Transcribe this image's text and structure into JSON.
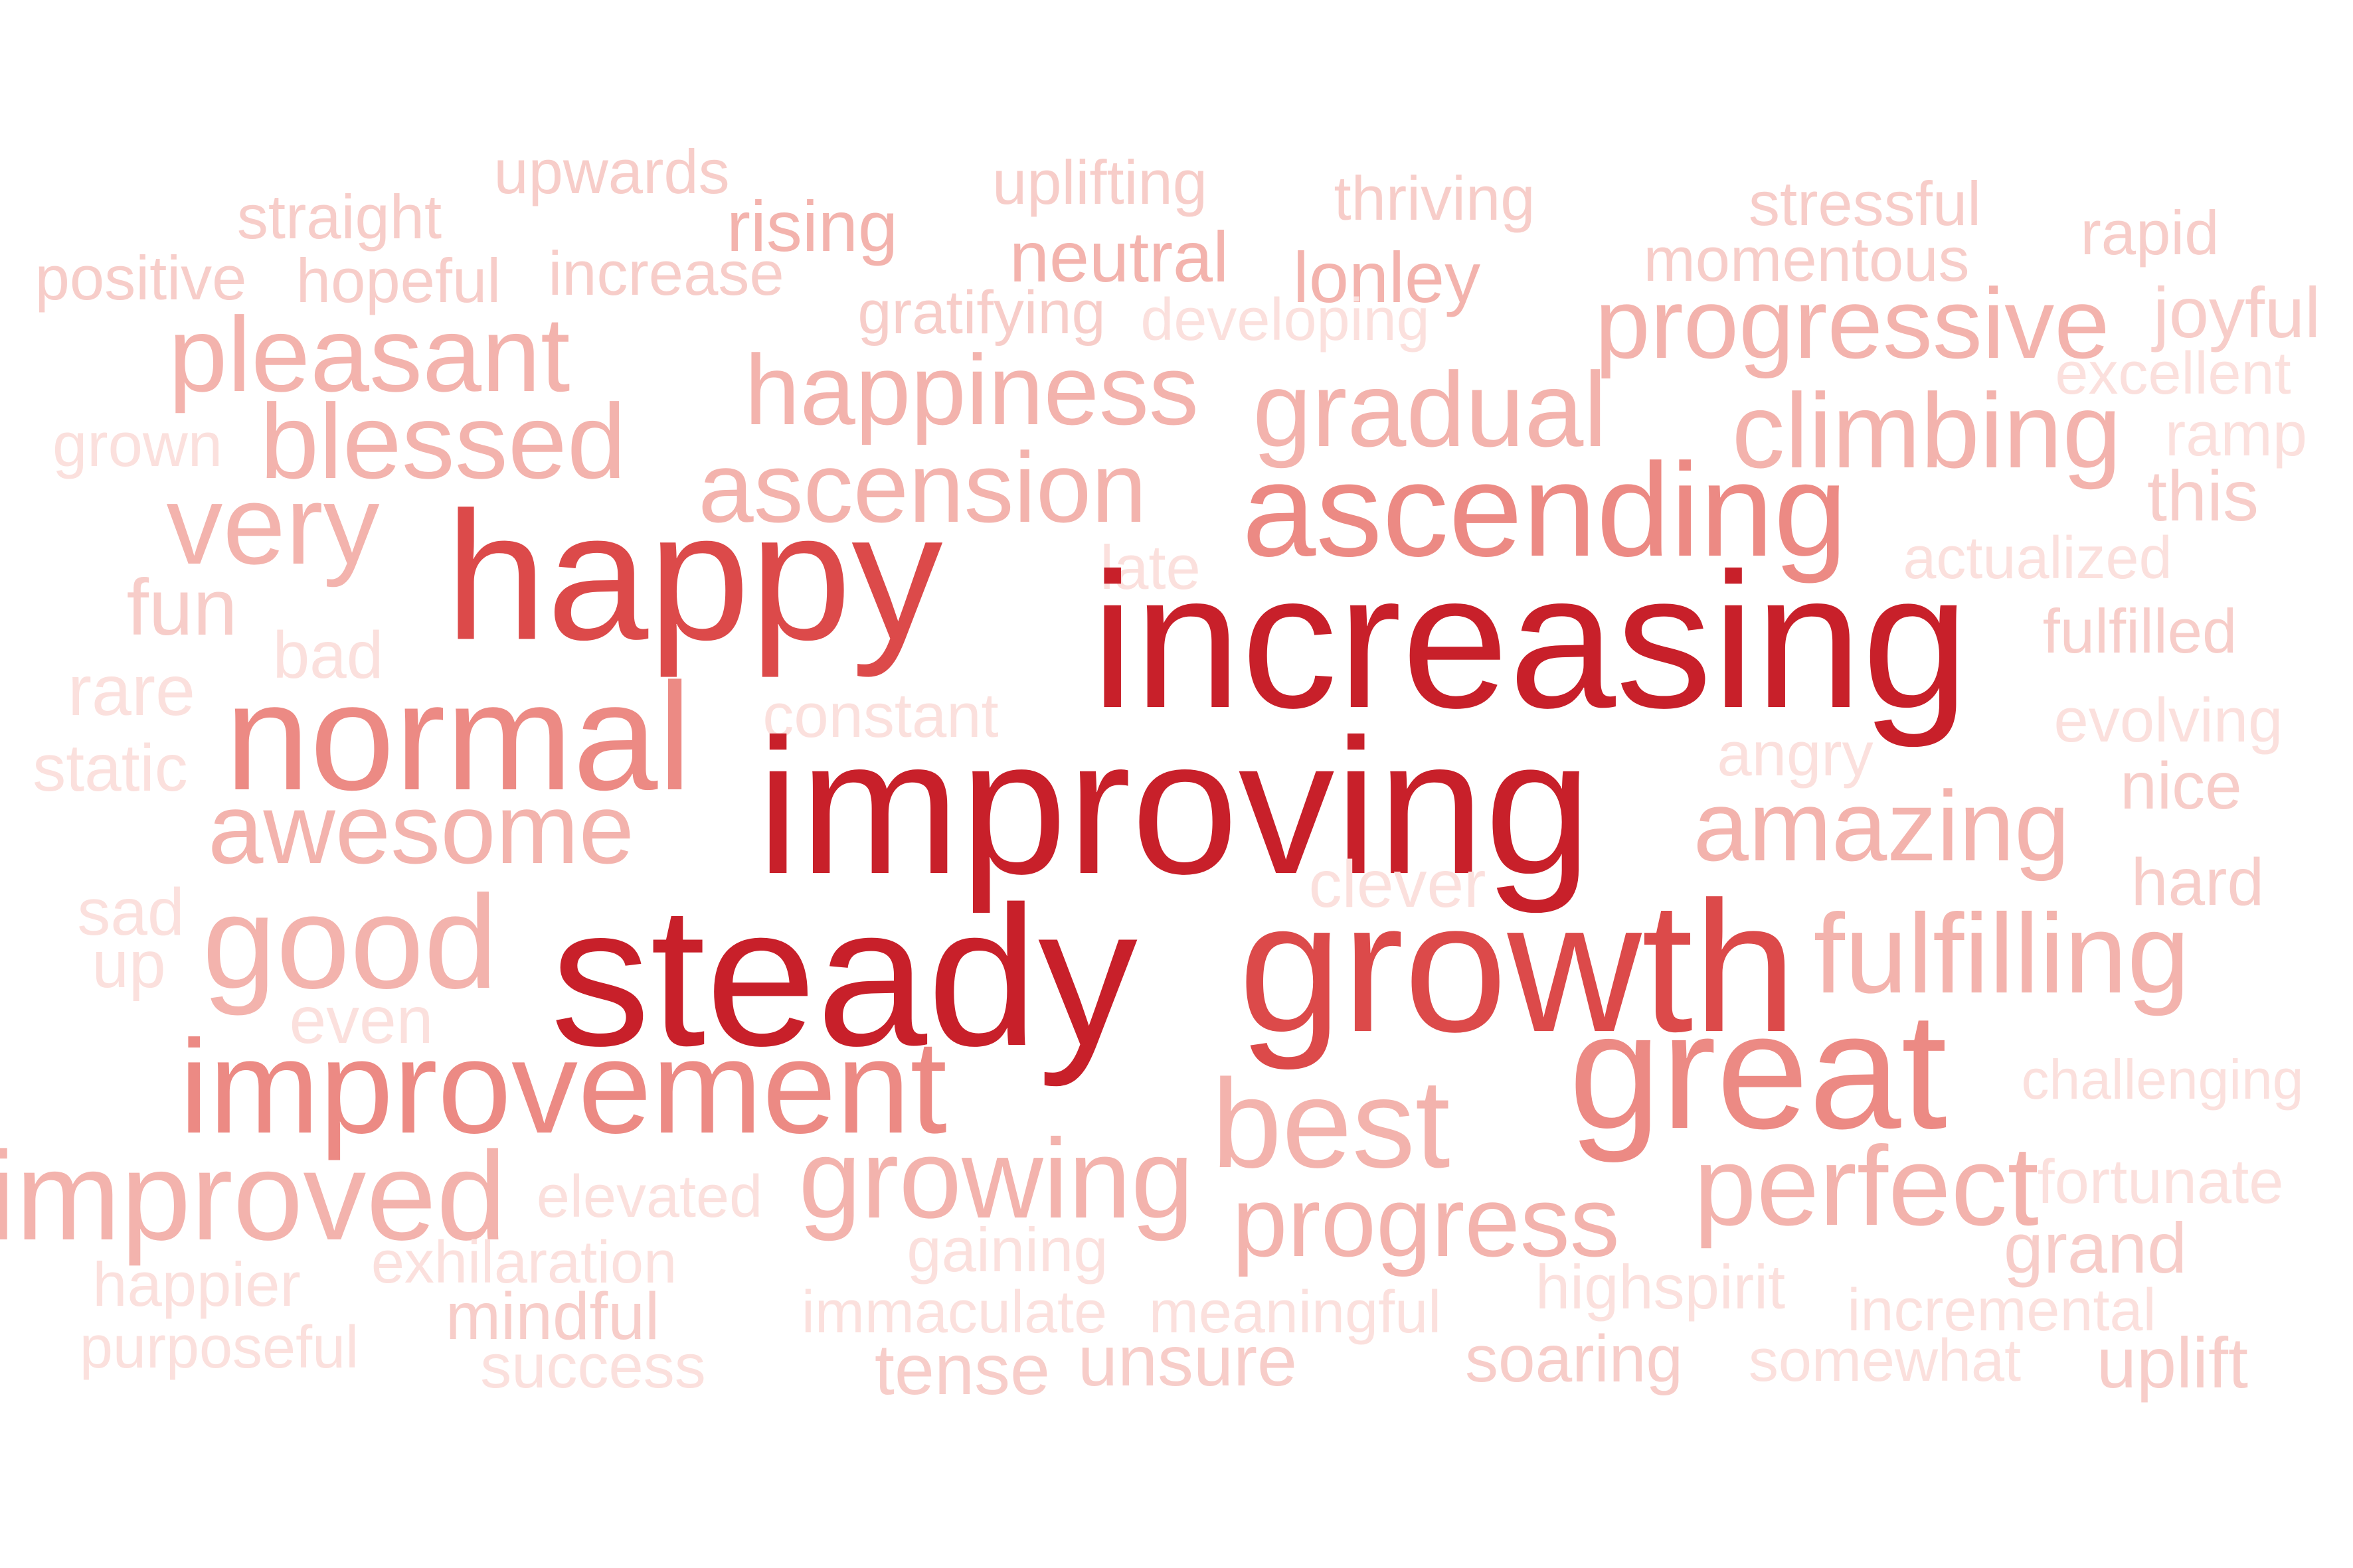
{
  "word_cloud": {
    "palette": {
      "darkest": "#c8202a",
      "dark": "#dc4a4a",
      "medium": "#ec8a84",
      "light": "#f3b3ad",
      "lighter": "#f7cdc9",
      "lightest": "#fbe0dd"
    },
    "words": [
      {
        "text": "upwards",
        "weight": 0.08
      },
      {
        "text": "uplifting",
        "weight": 0.08
      },
      {
        "text": "thriving",
        "weight": 0.08
      },
      {
        "text": "stressful",
        "weight": 0.08
      },
      {
        "text": "straight",
        "weight": 0.08
      },
      {
        "text": "rising",
        "weight": 0.1
      },
      {
        "text": "neutral",
        "weight": 0.1
      },
      {
        "text": "lonley",
        "weight": 0.1
      },
      {
        "text": "momentous",
        "weight": 0.08
      },
      {
        "text": "rapid",
        "weight": 0.08
      },
      {
        "text": "positive",
        "weight": 0.08
      },
      {
        "text": "hopeful",
        "weight": 0.08
      },
      {
        "text": "increase",
        "weight": 0.08
      },
      {
        "text": "gratifying",
        "weight": 0.08
      },
      {
        "text": "developing",
        "weight": 0.06
      },
      {
        "text": "progressive",
        "weight": 0.3
      },
      {
        "text": "joyful",
        "weight": 0.08
      },
      {
        "text": "pleasant",
        "weight": 0.3
      },
      {
        "text": "happiness",
        "weight": 0.3
      },
      {
        "text": "excellent",
        "weight": 0.06
      },
      {
        "text": "gradual",
        "weight": 0.3
      },
      {
        "text": "blessed",
        "weight": 0.32
      },
      {
        "text": "grown",
        "weight": 0.06
      },
      {
        "text": "climbing",
        "weight": 0.3
      },
      {
        "text": "ramp",
        "weight": 0.06
      },
      {
        "text": "ascension",
        "weight": 0.3
      },
      {
        "text": "this",
        "weight": 0.08
      },
      {
        "text": "very",
        "weight": 0.32
      },
      {
        "text": "ascending",
        "weight": 0.45
      },
      {
        "text": "happy",
        "weight": 0.62
      },
      {
        "text": "late",
        "weight": 0.04
      },
      {
        "text": "actualized",
        "weight": 0.06
      },
      {
        "text": "fun",
        "weight": 0.08
      },
      {
        "text": "increasing",
        "weight": 1.0
      },
      {
        "text": "bad",
        "weight": 0.06
      },
      {
        "text": "fulfilled",
        "weight": 0.08
      },
      {
        "text": "rare",
        "weight": 0.06
      },
      {
        "text": "constant",
        "weight": 0.04
      },
      {
        "text": "evolving",
        "weight": 0.06
      },
      {
        "text": "normal",
        "weight": 0.5
      },
      {
        "text": "angry",
        "weight": 0.04
      },
      {
        "text": "static",
        "weight": 0.04
      },
      {
        "text": "improving",
        "weight": 1.0
      },
      {
        "text": "nice",
        "weight": 0.06
      },
      {
        "text": "awesome",
        "weight": 0.3
      },
      {
        "text": "amazing",
        "weight": 0.3
      },
      {
        "text": "clever",
        "weight": 0.04
      },
      {
        "text": "hard",
        "weight": 0.06
      },
      {
        "text": "sad",
        "weight": 0.04
      },
      {
        "text": "good",
        "weight": 0.32
      },
      {
        "text": "steady",
        "weight": 1.0
      },
      {
        "text": "growth",
        "weight": 0.65
      },
      {
        "text": "fulfilling",
        "weight": 0.3
      },
      {
        "text": "up",
        "weight": 0.04
      },
      {
        "text": "even",
        "weight": 0.04
      },
      {
        "text": "improvement",
        "weight": 0.4
      },
      {
        "text": "great",
        "weight": 0.5
      },
      {
        "text": "best",
        "weight": 0.3
      },
      {
        "text": "challenging",
        "weight": 0.04
      },
      {
        "text": "growing",
        "weight": 0.3
      },
      {
        "text": "improved",
        "weight": 0.32
      },
      {
        "text": "elevated",
        "weight": 0.06
      },
      {
        "text": "perfect",
        "weight": 0.32
      },
      {
        "text": "fortunate",
        "weight": 0.06
      },
      {
        "text": "progress",
        "weight": 0.3
      },
      {
        "text": "exhilaration",
        "weight": 0.06
      },
      {
        "text": "gaining",
        "weight": 0.06
      },
      {
        "text": "grand",
        "weight": 0.08
      },
      {
        "text": "happier",
        "weight": 0.06
      },
      {
        "text": "highspirit",
        "weight": 0.06
      },
      {
        "text": "mindful",
        "weight": 0.08
      },
      {
        "text": "immaculate",
        "weight": 0.06
      },
      {
        "text": "meaningful",
        "weight": 0.06
      },
      {
        "text": "incremental",
        "weight": 0.06
      },
      {
        "text": "purposeful",
        "weight": 0.06
      },
      {
        "text": "success",
        "weight": 0.06
      },
      {
        "text": "tense",
        "weight": 0.08
      },
      {
        "text": "unsure",
        "weight": 0.08
      },
      {
        "text": "soaring",
        "weight": 0.08
      },
      {
        "text": "somewhat",
        "weight": 0.06
      },
      {
        "text": "uplift",
        "weight": 0.08
      }
    ]
  }
}
